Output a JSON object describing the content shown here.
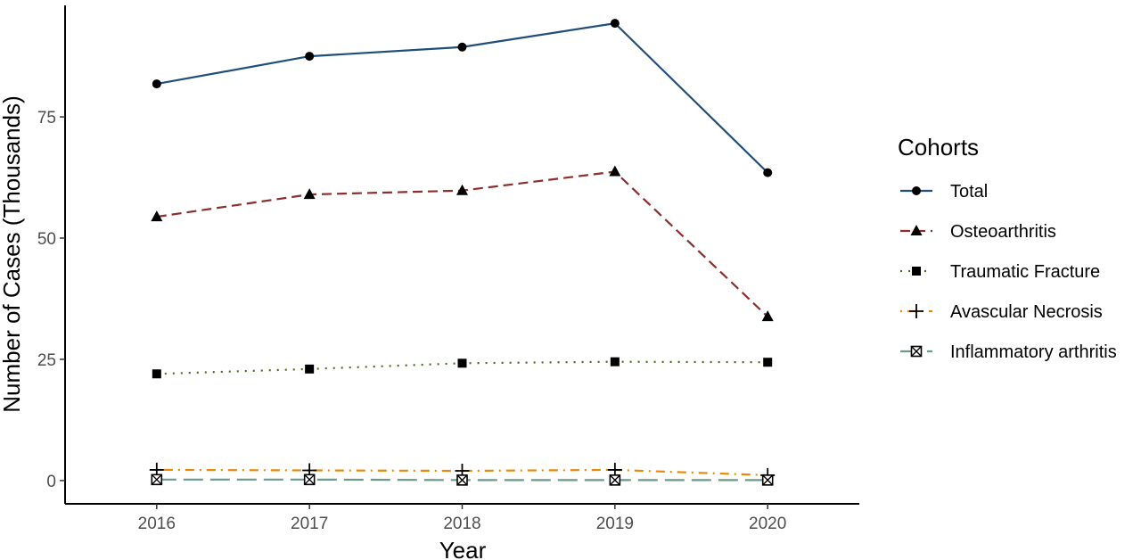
{
  "chart_data": {
    "type": "line",
    "title": "",
    "xlabel": "Year",
    "ylabel": "Number of Cases (Thousands)",
    "x": [
      2016,
      2017,
      2018,
      2019,
      2020
    ],
    "x_tick_labels": [
      "2016",
      "2017",
      "2018",
      "2019",
      "2020"
    ],
    "xlim": [
      2015.4,
      2020.6
    ],
    "y_ticks": [
      0,
      25,
      50,
      75
    ],
    "y_tick_labels": [
      "0",
      "25",
      "50",
      "75"
    ],
    "ylim": [
      -4.8,
      98
    ],
    "grid": false,
    "legend": {
      "title": "Cohorts",
      "position": "right"
    },
    "series": [
      {
        "name": "Total",
        "values": [
          81.8,
          87.5,
          89.4,
          94.3,
          63.5
        ],
        "color": "#1f4e79",
        "dash": "solid",
        "marker": "circle"
      },
      {
        "name": "Osteoarthritis",
        "values": [
          54.4,
          59.0,
          59.8,
          63.7,
          33.8
        ],
        "color": "#8b2e2e",
        "dash": "dashed",
        "marker": "triangle"
      },
      {
        "name": "Traumatic Fracture",
        "values": [
          22.0,
          23.0,
          24.2,
          24.5,
          24.4
        ],
        "color": "#4a6b1f",
        "dash": "dotted",
        "marker": "square"
      },
      {
        "name": "Avascular Necrosis",
        "values": [
          2.2,
          2.1,
          2.0,
          2.2,
          1.1
        ],
        "color": "#e8890c",
        "dash": "dotdash",
        "marker": "plus"
      },
      {
        "name": "Inflammatory arthritis",
        "values": [
          0.2,
          0.2,
          0.1,
          0.1,
          0.1
        ],
        "color": "#6b9a8c",
        "dash": "longdash",
        "marker": "square-x"
      }
    ]
  }
}
